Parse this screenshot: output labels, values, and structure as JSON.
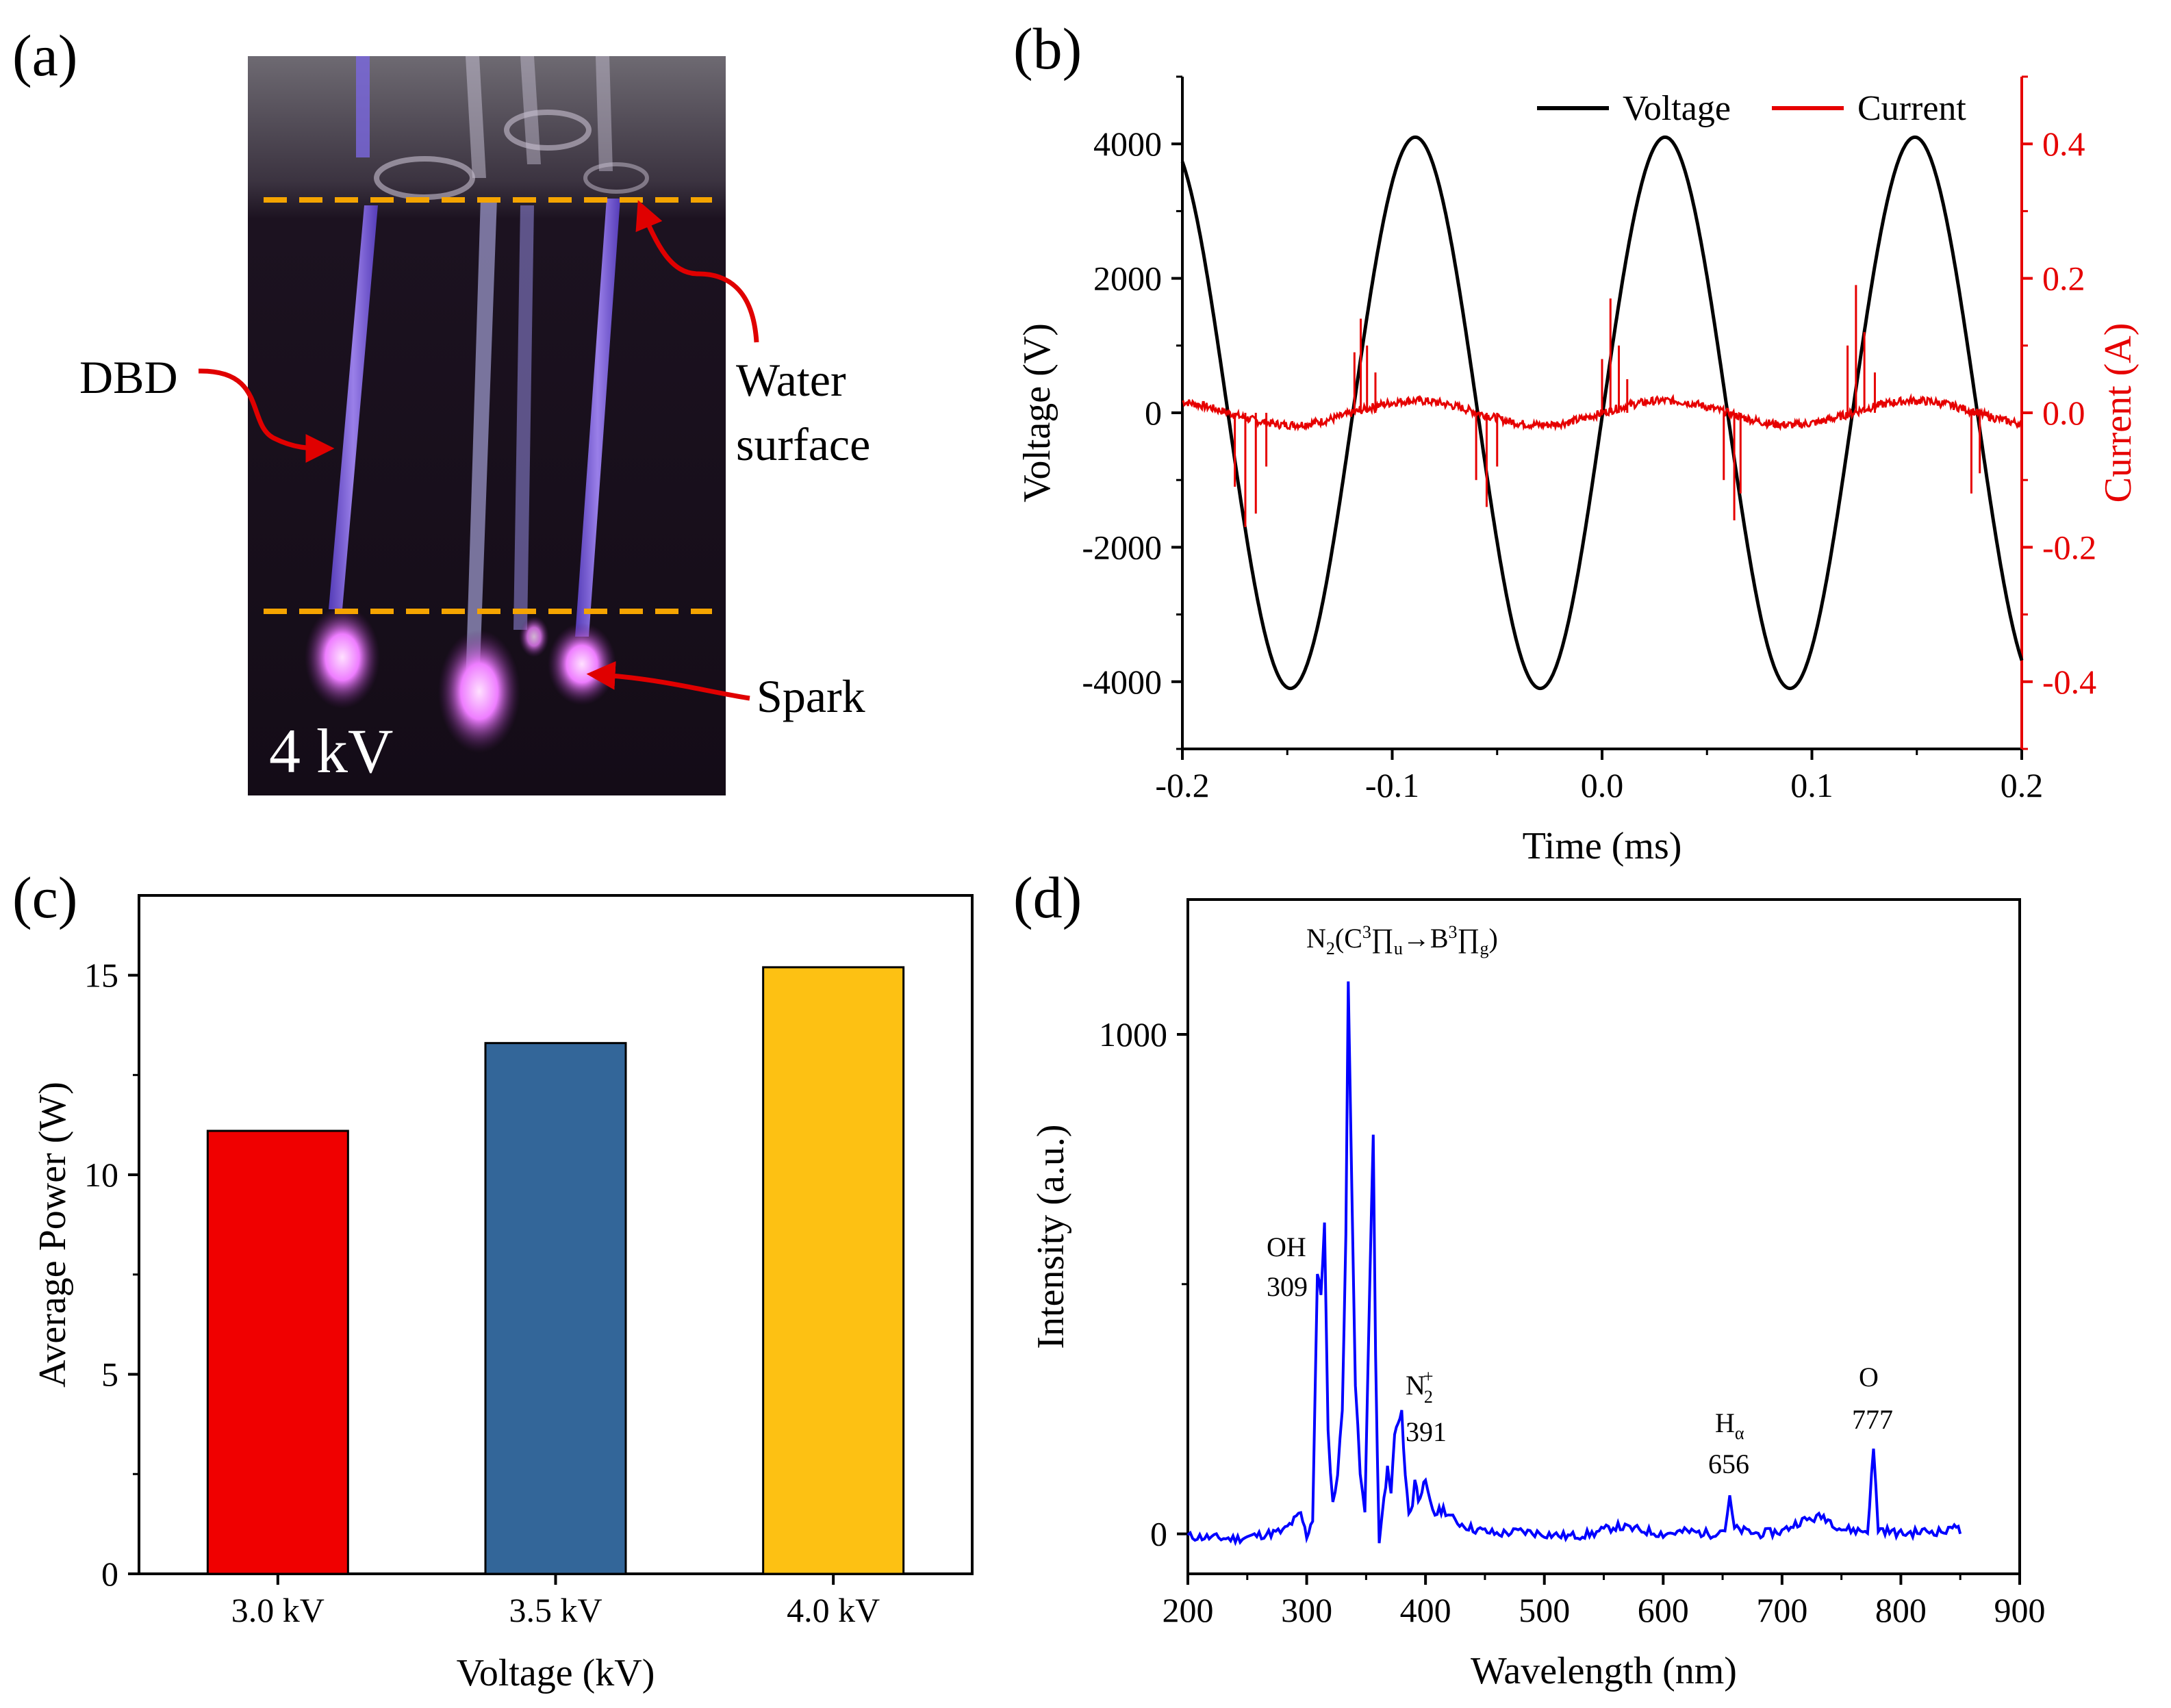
{
  "panel_a": {
    "letter": "(a)",
    "voltage_text": "4 kV",
    "dbd_label": "DBD",
    "water_label_1": "Water",
    "water_label_2": "surface",
    "spark_label": "Spark",
    "colors": {
      "background": "#1a0f1c",
      "plasma": "#9b6cff",
      "spark": "#ee7dff",
      "guide": "#f5a400",
      "arrow": "#e00000"
    }
  },
  "chart_data": [
    {
      "panel": "(b)",
      "type": "line",
      "xlabel": "Time (ms)",
      "ylabel": "Voltage (V)",
      "y2label": "Current (A)",
      "xlim": [
        -0.2,
        0.2
      ],
      "ylim": [
        -5000,
        5000
      ],
      "y2lim": [
        -0.5,
        0.5
      ],
      "xticks": [
        "-0.2",
        "-0.1",
        "0.0",
        "0.1",
        "0.2"
      ],
      "yticks": [
        "-4000",
        "-2000",
        "0",
        "2000",
        "4000"
      ],
      "y2ticks": [
        "-0.4",
        "-0.2",
        "0.0",
        "0.2",
        "0.4"
      ],
      "legend": [
        "Voltage",
        "Current"
      ],
      "legend_position": "top-right",
      "series": [
        {
          "name": "Voltage",
          "color": "#000000",
          "amplitude_V": 4100,
          "frequency_kHz": 8.4,
          "peak_times_ms": [
            -0.089,
            0.03,
            0.148
          ],
          "trough_times_ms": [
            -0.148,
            -0.03,
            0.089
          ]
        },
        {
          "name": "Current",
          "color": "#e60000",
          "baseline_A": 0.0,
          "spikes": [
            {
              "t": -0.175,
              "v": -0.11
            },
            {
              "t": -0.17,
              "v": -0.17
            },
            {
              "t": -0.165,
              "v": -0.15
            },
            {
              "t": -0.16,
              "v": -0.08
            },
            {
              "t": -0.118,
              "v": 0.09
            },
            {
              "t": -0.115,
              "v": 0.14
            },
            {
              "t": -0.112,
              "v": 0.1
            },
            {
              "t": -0.108,
              "v": 0.06
            },
            {
              "t": -0.06,
              "v": -0.1
            },
            {
              "t": -0.055,
              "v": -0.14
            },
            {
              "t": -0.05,
              "v": -0.08
            },
            {
              "t": 0.0,
              "v": 0.08
            },
            {
              "t": 0.004,
              "v": 0.17
            },
            {
              "t": 0.008,
              "v": 0.1
            },
            {
              "t": 0.012,
              "v": 0.05
            },
            {
              "t": 0.058,
              "v": -0.1
            },
            {
              "t": 0.063,
              "v": -0.16
            },
            {
              "t": 0.066,
              "v": -0.12
            },
            {
              "t": 0.117,
              "v": 0.1
            },
            {
              "t": 0.121,
              "v": 0.19
            },
            {
              "t": 0.125,
              "v": 0.12
            },
            {
              "t": 0.13,
              "v": 0.06
            },
            {
              "t": 0.176,
              "v": -0.12
            },
            {
              "t": 0.18,
              "v": -0.09
            }
          ]
        }
      ]
    },
    {
      "panel": "(c)",
      "type": "bar",
      "xlabel": "Voltage (kV)",
      "ylabel": "Average Power (W)",
      "ylim": [
        0,
        17
      ],
      "yticks": [
        "0",
        "5",
        "10",
        "15"
      ],
      "categories": [
        "3.0 kV",
        "3.5 kV",
        "4.0 kV"
      ],
      "values": [
        11.1,
        13.3,
        15.2
      ],
      "colors": [
        "#f00000",
        "#336699",
        "#fdc113"
      ]
    },
    {
      "panel": "(d)",
      "type": "line",
      "xlabel": "Wavelength (nm)",
      "ylabel": "Intensity (a.u.)",
      "xlim": [
        200,
        900
      ],
      "ylim": [
        -80,
        1270
      ],
      "xticks": [
        "200",
        "300",
        "400",
        "500",
        "600",
        "700",
        "800",
        "900"
      ],
      "yticks": [
        "0",
        "1000"
      ],
      "series": [
        {
          "name": "Emission spectrum",
          "color": "#0000ff",
          "points": [
            [
              200,
              -5
            ],
            [
              240,
              -10
            ],
            [
              280,
              5
            ],
            [
              295,
              40
            ],
            [
              300,
              -5
            ],
            [
              305,
              30
            ],
            [
              309,
              520
            ],
            [
              312,
              480
            ],
            [
              315,
              620
            ],
            [
              318,
              200
            ],
            [
              322,
              60
            ],
            [
              326,
              120
            ],
            [
              330,
              250
            ],
            [
              333,
              600
            ],
            [
              335,
              1100
            ],
            [
              338,
              700
            ],
            [
              341,
              300
            ],
            [
              345,
              120
            ],
            [
              349,
              40
            ],
            [
              353,
              500
            ],
            [
              356,
              800
            ],
            [
              358,
              350
            ],
            [
              361,
              -25
            ],
            [
              365,
              70
            ],
            [
              368,
              130
            ],
            [
              371,
              80
            ],
            [
              374,
              200
            ],
            [
              377,
              220
            ],
            [
              380,
              240
            ],
            [
              383,
              120
            ],
            [
              386,
              40
            ],
            [
              389,
              60
            ],
            [
              391,
              110
            ],
            [
              394,
              70
            ],
            [
              397,
              90
            ],
            [
              400,
              100
            ],
            [
              404,
              60
            ],
            [
              408,
              40
            ],
            [
              415,
              50
            ],
            [
              425,
              25
            ],
            [
              440,
              10
            ],
            [
              460,
              0
            ],
            [
              480,
              5
            ],
            [
              500,
              0
            ],
            [
              520,
              -5
            ],
            [
              540,
              0
            ],
            [
              560,
              15
            ],
            [
              580,
              8
            ],
            [
              600,
              0
            ],
            [
              620,
              5
            ],
            [
              640,
              0
            ],
            [
              652,
              10
            ],
            [
              656,
              70
            ],
            [
              660,
              10
            ],
            [
              680,
              0
            ],
            [
              700,
              5
            ],
            [
              715,
              25
            ],
            [
              735,
              35
            ],
            [
              750,
              10
            ],
            [
              772,
              5
            ],
            [
              777,
              170
            ],
            [
              781,
              10
            ],
            [
              800,
              0
            ],
            [
              820,
              5
            ],
            [
              840,
              5
            ],
            [
              845,
              25
            ],
            [
              850,
              0
            ]
          ]
        }
      ],
      "annotations": [
        {
          "text": "N2(C3Πu→B3Πg)",
          "x": 335,
          "y": 1100
        },
        {
          "text": "OH",
          "sub": "309",
          "x": 309,
          "y": 520
        },
        {
          "text": "N2+",
          "sub": "391",
          "x": 391,
          "y": 240
        },
        {
          "text": "Hα",
          "sub": "656",
          "x": 656,
          "y": 70
        },
        {
          "text": "O",
          "sub": "777",
          "x": 777,
          "y": 170
        }
      ]
    }
  ],
  "texts": {
    "b_letter": "(b)",
    "c_letter": "(c)",
    "d_letter": "(d)",
    "d_n2_main": "N",
    "d_n2_sub": "2",
    "d_n2_rest1": "(C",
    "d_n2_sup1": "3",
    "d_n2_pi1": "∏",
    "d_n2_sub_u": "u",
    "d_n2_arrow": "→B",
    "d_n2_sup2": "3",
    "d_n2_pi2": "∏",
    "d_n2_sub_g": "g",
    "d_n2_close": ")",
    "d_oh": "OH",
    "d_oh_num": "309",
    "d_n2p": "N",
    "d_n2p_sub": "2",
    "d_n2p_sup": "+",
    "d_n2p_num": "391",
    "d_ha": "H",
    "d_ha_sub": "α",
    "d_ha_num": "656",
    "d_o": "O",
    "d_o_num": "777"
  }
}
